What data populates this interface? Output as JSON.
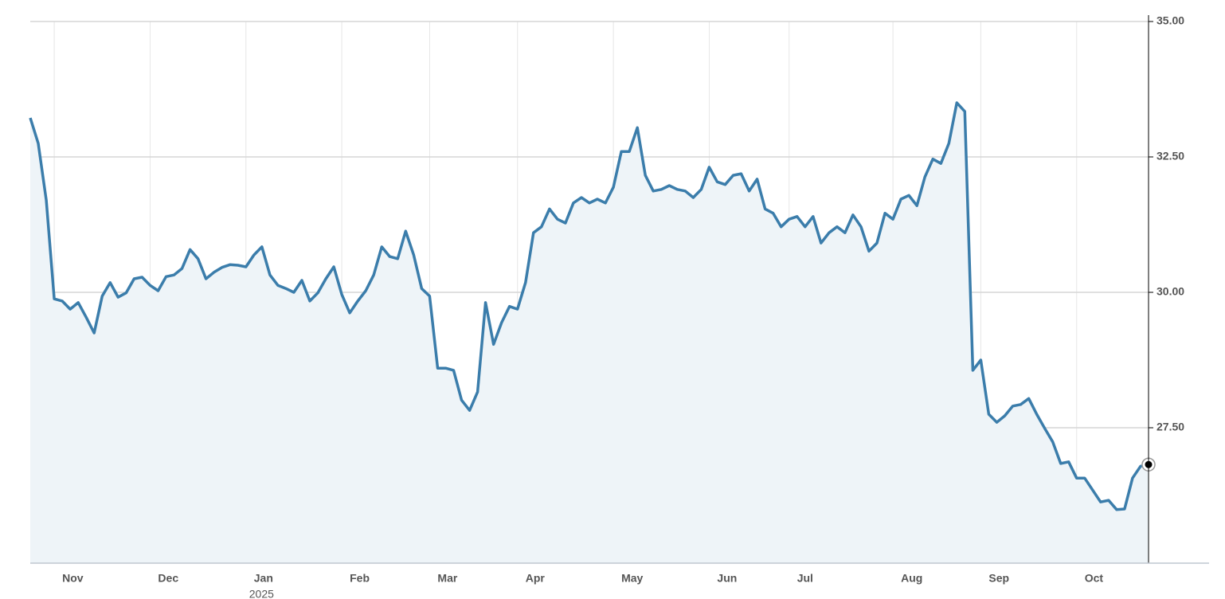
{
  "chart_data": {
    "type": "area",
    "categories": [
      null,
      null,
      null,
      "Nov",
      null,
      null,
      null,
      null,
      null,
      null,
      null,
      null,
      null,
      null,
      null,
      "Dec",
      null,
      null,
      null,
      null,
      null,
      null,
      null,
      null,
      null,
      null,
      null,
      "Jan",
      null,
      null,
      null,
      null,
      null,
      null,
      null,
      null,
      null,
      null,
      null,
      "Feb",
      null,
      null,
      null,
      null,
      null,
      null,
      null,
      null,
      null,
      null,
      "Mar",
      null,
      null,
      null,
      null,
      null,
      null,
      null,
      null,
      null,
      null,
      "Apr",
      null,
      null,
      null,
      null,
      null,
      null,
      null,
      null,
      null,
      null,
      null,
      "May",
      null,
      null,
      null,
      null,
      null,
      null,
      null,
      null,
      null,
      null,
      null,
      "Jun",
      null,
      null,
      null,
      null,
      null,
      null,
      null,
      null,
      null,
      "Jul",
      null,
      null,
      null,
      null,
      null,
      null,
      null,
      null,
      null,
      null,
      null,
      null,
      "Aug",
      null,
      null,
      null,
      null,
      null,
      null,
      null,
      null,
      null,
      null,
      "Sep",
      null,
      null,
      null,
      null,
      null,
      null,
      null,
      null,
      null,
      null,
      null,
      "Oct",
      null,
      null,
      null,
      null,
      null,
      null,
      null,
      null,
      null
    ],
    "year_label": "2025",
    "values": [
      33.22,
      32.75,
      31.7,
      29.88,
      29.84,
      29.69,
      29.81,
      29.54,
      29.25,
      29.93,
      30.18,
      29.91,
      29.99,
      30.25,
      30.28,
      30.13,
      30.03,
      30.29,
      30.32,
      30.44,
      30.79,
      30.62,
      30.25,
      30.37,
      30.46,
      30.51,
      30.5,
      30.47,
      30.69,
      30.84,
      30.32,
      30.13,
      30.07,
      30.0,
      30.22,
      29.84,
      29.99,
      30.25,
      30.47,
      29.96,
      29.62,
      29.84,
      30.03,
      30.32,
      30.84,
      30.66,
      30.62,
      31.13,
      30.69,
      30.07,
      29.93,
      28.6,
      28.6,
      28.56,
      28.01,
      27.82,
      28.16,
      29.81,
      29.04,
      29.44,
      29.74,
      29.69,
      30.18,
      31.1,
      31.21,
      31.54,
      31.35,
      31.28,
      31.65,
      31.75,
      31.65,
      31.72,
      31.65,
      31.94,
      32.6,
      32.6,
      33.04,
      32.16,
      31.87,
      31.9,
      31.97,
      31.9,
      31.87,
      31.75,
      31.9,
      32.31,
      32.04,
      31.99,
      32.16,
      32.19,
      31.87,
      32.09,
      31.54,
      31.46,
      31.21,
      31.35,
      31.4,
      31.21,
      31.4,
      30.91,
      31.1,
      31.21,
      31.1,
      31.43,
      31.21,
      30.76,
      30.91,
      31.46,
      31.35,
      31.72,
      31.79,
      31.6,
      32.13,
      32.46,
      32.38,
      32.75,
      33.5,
      33.34,
      28.56,
      28.75,
      27.75,
      27.6,
      27.72,
      27.9,
      27.93,
      28.04,
      27.75,
      27.49,
      27.24,
      26.84,
      26.87,
      26.57,
      26.57,
      26.35,
      26.13,
      26.16,
      25.99,
      26.0,
      26.57,
      26.79,
      26.82
    ],
    "color": "#3b7dab",
    "area_color": "#eef4f8",
    "ylim": [
      25,
      35
    ],
    "yticks": [
      {
        "value": 27.5,
        "label": "27.50"
      },
      {
        "value": 30,
        "label": "30.00"
      },
      {
        "value": 32.5,
        "label": "32.50"
      },
      {
        "value": 35,
        "label": "35.00"
      }
    ],
    "grid": true
  }
}
